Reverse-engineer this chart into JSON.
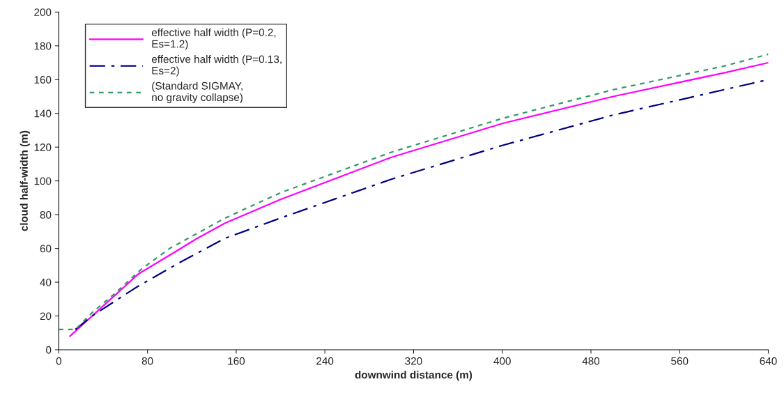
{
  "chart_data": {
    "type": "line",
    "xlabel": "downwind distance (m)",
    "ylabel": "cloud half-width (m)",
    "xlim": [
      0,
      640
    ],
    "xticks": [
      0,
      80,
      160,
      240,
      320,
      400,
      480,
      560,
      640
    ],
    "ylim": [
      0,
      200
    ],
    "yticks": [
      0,
      20,
      40,
      60,
      80,
      100,
      120,
      140,
      160,
      180,
      200
    ],
    "grid": false,
    "legend": "top left",
    "marker": "none",
    "series": [
      {
        "name": "effective half width (P=0.2, Es=1.2)",
        "color": "#ff00ff",
        "line_style": "solid",
        "x": [
          10,
          72,
          100,
          125,
          150,
          200,
          300,
          400,
          500,
          600,
          640
        ],
        "values": [
          8,
          45,
          56,
          66,
          75,
          89,
          114,
          134,
          150,
          164,
          170
        ]
      },
      {
        "name": "effective half width (P=0.13, Es=2)",
        "color": "#000080",
        "line_style": "dashdot",
        "x": [
          15,
          30,
          70,
          110,
          150,
          200,
          300,
          400,
          500,
          600,
          640
        ],
        "values": [
          12,
          20,
          37,
          52,
          66,
          78,
          101,
          121,
          139,
          154,
          160
        ]
      },
      {
        "name": "(Standard SIGMAY, no gravity collapse)",
        "color": "#339966",
        "line_style": "dotted",
        "x": [
          0,
          15,
          30,
          50,
          75,
          100,
          150,
          200,
          300,
          400,
          500,
          600,
          640
        ],
        "values": [
          12,
          12,
          22,
          33,
          48,
          60,
          78,
          93,
          117,
          137,
          154,
          168,
          175
        ]
      }
    ]
  }
}
